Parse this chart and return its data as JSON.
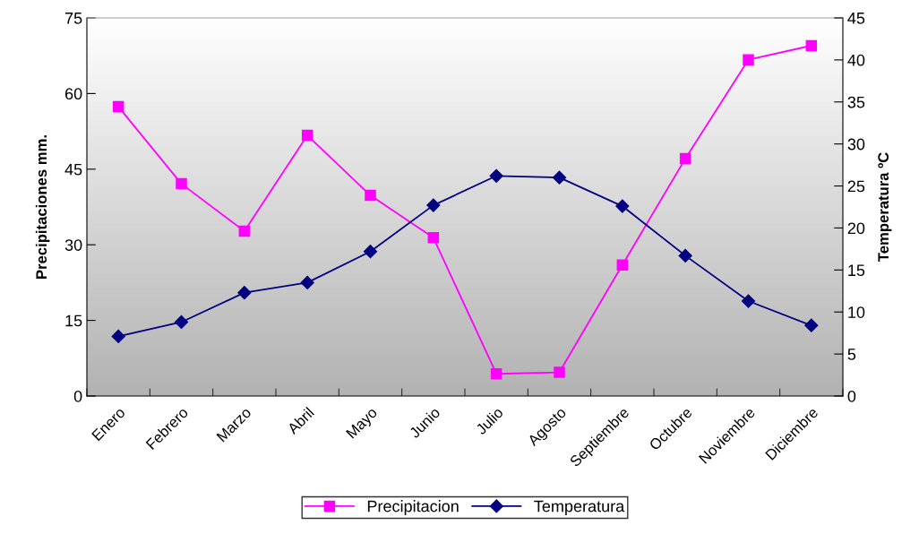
{
  "chart_data": {
    "type": "line",
    "categories": [
      "Enero",
      "Febrero",
      "Marzo",
      "Abril",
      "Mayo",
      "Junio",
      "Julio",
      "Agosto",
      "Septiembre",
      "Octubre",
      "Noviembre",
      "Diciembre"
    ],
    "ylabel": "Precipitaciones mm.",
    "y2label": "Temperatura ºC",
    "ylim": [
      0,
      75
    ],
    "yticks": [
      0,
      15,
      30,
      45,
      60,
      75
    ],
    "y2lim": [
      0,
      45
    ],
    "y2ticks": [
      0,
      5,
      10,
      15,
      20,
      25,
      30,
      35,
      40,
      45
    ],
    "grid": false,
    "legend": "bottom",
    "series": [
      {
        "name": "Precipitacion",
        "color": "#ff00ff",
        "marker": "square",
        "values": [
          57.4,
          42.1,
          32.7,
          51.7,
          39.8,
          31.4,
          4.4,
          4.7,
          26.0,
          47.1,
          66.7,
          69.5
        ]
      },
      {
        "name": "Temperatura",
        "color": "#000080",
        "marker": "diamond",
        "axis": "y2",
        "values": [
          7.1,
          8.8,
          12.3,
          13.5,
          17.2,
          22.7,
          26.2,
          26.0,
          22.6,
          16.7,
          11.3,
          8.4
        ]
      }
    ]
  }
}
